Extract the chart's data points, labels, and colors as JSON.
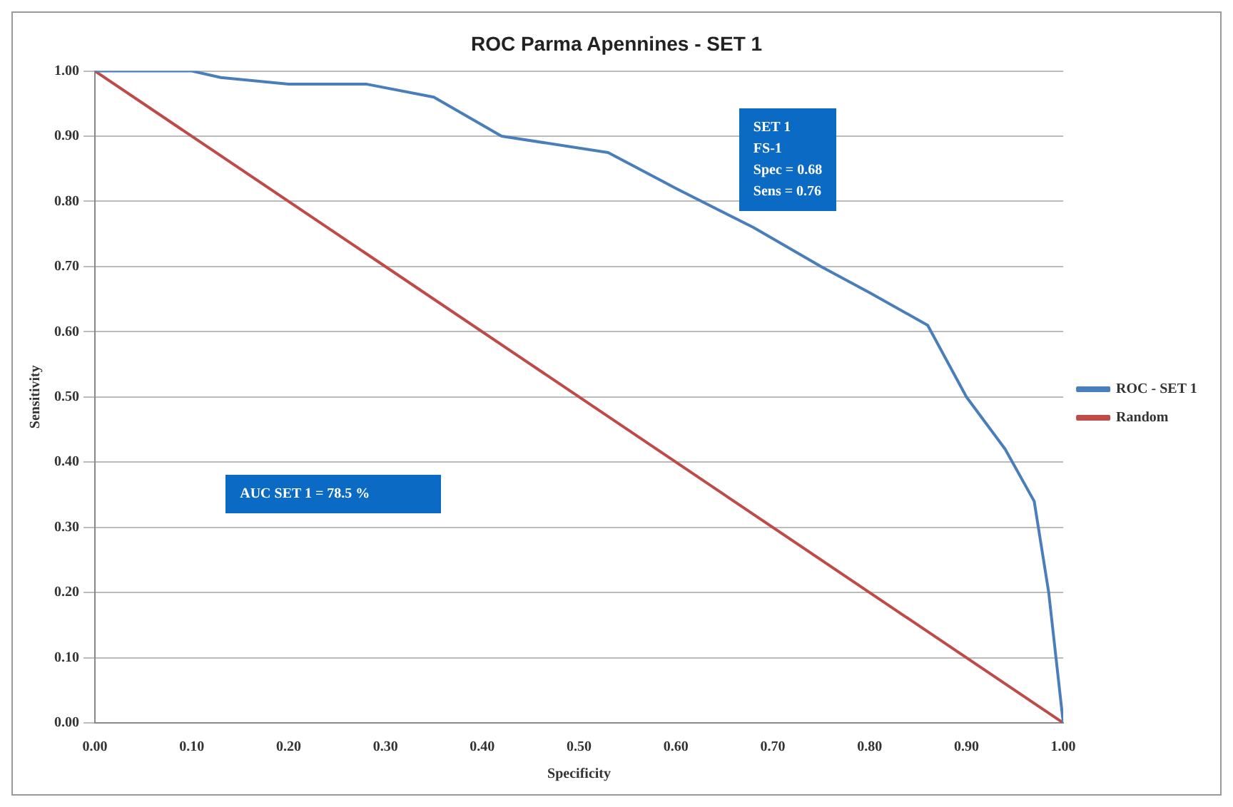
{
  "chart_data": {
    "type": "line",
    "title": "ROC Parma Apennines - SET 1",
    "xlabel": "Specificity",
    "ylabel": "Sensitivity",
    "xlim": [
      0,
      1
    ],
    "ylim": [
      0,
      1
    ],
    "xticks": [
      {
        "value": 0,
        "label": "0.00"
      },
      {
        "value": 0.1,
        "label": "0.10"
      },
      {
        "value": 0.2,
        "label": "0.20"
      },
      {
        "value": 0.3,
        "label": "0.30"
      },
      {
        "value": 0.4,
        "label": "0.40"
      },
      {
        "value": 0.5,
        "label": "0.50"
      },
      {
        "value": 0.6,
        "label": "0.60"
      },
      {
        "value": 0.7,
        "label": "0.70"
      },
      {
        "value": 0.8,
        "label": "0.80"
      },
      {
        "value": 0.9,
        "label": "0.90"
      },
      {
        "value": 1,
        "label": "1.00"
      }
    ],
    "yticks": [
      {
        "value": 0,
        "label": "0.00"
      },
      {
        "value": 0.1,
        "label": "0.10"
      },
      {
        "value": 0.2,
        "label": "0.20"
      },
      {
        "value": 0.3,
        "label": "0.30"
      },
      {
        "value": 0.4,
        "label": "0.40"
      },
      {
        "value": 0.5,
        "label": "0.50"
      },
      {
        "value": 0.6,
        "label": "0.60"
      },
      {
        "value": 0.7,
        "label": "0.70"
      },
      {
        "value": 0.8,
        "label": "0.80"
      },
      {
        "value": 0.9,
        "label": "0.90"
      },
      {
        "value": 1,
        "label": "1.00"
      }
    ],
    "grid": "y",
    "legend": "right",
    "marker": "none",
    "line_style": "solid",
    "series": [
      {
        "name": "ROC - SET 1",
        "color": "#4a7ebb",
        "x": [
          0,
          0.1,
          0.13,
          0.2,
          0.28,
          0.35,
          0.42,
          0.53,
          0.6,
          0.68,
          0.75,
          0.8,
          0.86,
          0.9,
          0.94,
          0.97,
          0.985,
          1
        ],
        "values": [
          1,
          1,
          0.99,
          0.98,
          0.98,
          0.96,
          0.9,
          0.875,
          0.82,
          0.76,
          0.7,
          0.66,
          0.61,
          0.5,
          0.42,
          0.34,
          0.2,
          0
        ]
      },
      {
        "name": "Random",
        "color": "#be4b48",
        "x": [
          0,
          1
        ],
        "values": [
          1,
          0
        ]
      }
    ],
    "annotations": [
      {
        "text": "SET 1\nFS-1\nSpec = 0.68\nSens = 0.76",
        "x": 0.68,
        "y": 0.76
      },
      "AUC SET 1 = 78.5 %"
    ]
  }
}
